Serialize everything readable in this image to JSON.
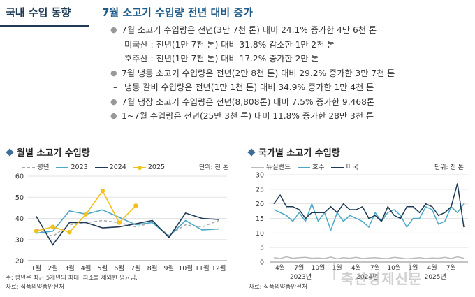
{
  "header": {
    "section": "국내 수입 동향",
    "title": "7월 소고기 수입량 전년 대비 증가"
  },
  "bullets": [
    {
      "level": 1,
      "text": "7월 소고기 수입량은 전년(3만 7천 톤) 대비 24.1% 증가한 4만 6천 톤"
    },
    {
      "level": 2,
      "text": "미국산 : 전년(1만 7천 톤) 대비 31.8% 감소한 1만 2천 톤"
    },
    {
      "level": 2,
      "text": "호주산 : 전년(1만 7천 톤) 대비 17.2% 증가한 2만 톤"
    },
    {
      "level": 1,
      "text": "7월 냉동 소고기 수입량은 전년(2만 8천 톤) 대비 29.2% 증가한 3만 7천 톤"
    },
    {
      "level": 2,
      "text": "냉동 갈비 수입량은 전년(1만 1천 톤) 대비 34.9% 증가한 1만 4천 톤"
    },
    {
      "level": 1,
      "text": "7월 냉장 소고기 수입량은 전년(8,808톤) 대비 7.5% 증가한 9,468톤"
    },
    {
      "level": 1,
      "text": "1~7월 수입량은 전년(25만 3천 톤) 대비 11.8% 증가한 28만 3천 톤"
    }
  ],
  "chart1": {
    "title": "월별 소고기 수입량",
    "unit": "단위: 천 톤",
    "note": "주: 평년은 최근 5개년의 최대, 최소를 제외한 평균임.",
    "source": "자료: 식품의약품안전처"
  },
  "chart2": {
    "title": "국가별 소고기 수입량",
    "unit": "단위: 천 톤",
    "source": "자료: 식품의약품안전처",
    "year_labels": [
      "2023년",
      "2024년",
      "2025년"
    ]
  },
  "watermark": "축산경제신문",
  "chart_data": [
    {
      "type": "line",
      "title": "월별 소고기 수입량",
      "categories": [
        "1월",
        "2월",
        "3월",
        "4월",
        "5월",
        "6월",
        "7월",
        "8월",
        "9월",
        "10월",
        "11월",
        "12월"
      ],
      "ylim": [
        20,
        60
      ],
      "yticks": [
        20,
        30,
        40,
        50,
        60
      ],
      "series": [
        {
          "name": "평년",
          "color": "#aaaaaa",
          "dashed": true,
          "values": [
            35,
            31.5,
            37,
            38,
            39,
            38,
            36,
            38,
            32,
            37,
            36,
            39
          ]
        },
        {
          "name": "2023",
          "color": "#4da8c7",
          "values": [
            33,
            34,
            43.5,
            42,
            44,
            40.5,
            37,
            38,
            31.5,
            39,
            34.5,
            35
          ]
        },
        {
          "name": "2024",
          "color": "#1f3a55",
          "values": [
            41,
            27.5,
            38,
            38,
            35.5,
            36,
            37.5,
            39,
            31,
            42.5,
            40,
            39.5
          ]
        },
        {
          "name": "2025",
          "color": "#f2c11c",
          "markers": true,
          "values": [
            34,
            36,
            33.5,
            42,
            53,
            38,
            46,
            null,
            null,
            null,
            null,
            null
          ]
        }
      ]
    },
    {
      "type": "line",
      "title": "국가별 소고기 수입량",
      "x_tick_labels": [
        "4월",
        "7월",
        "10월",
        "1월",
        "4월",
        "7월",
        "10월",
        "1월",
        "4월",
        "7월"
      ],
      "ylim": [
        0,
        30
      ],
      "yticks": [
        0,
        5,
        10,
        15,
        20,
        25,
        30
      ],
      "series": [
        {
          "name": "뉴질랜드",
          "color": "#bbbbbb",
          "values": [
            1.5,
            1.2,
            1.8,
            1.3,
            1.5,
            1.6,
            1.3,
            1.4,
            1.2,
            1.7,
            1.1,
            1.5,
            1.3,
            1.6,
            1.2,
            1.4,
            1.5,
            1.3,
            1.2,
            1.6,
            1.4,
            1.1,
            1.3,
            1.5,
            1.2,
            1.4,
            1.3,
            1.6,
            1.2,
            1.8,
            1.3
          ]
        },
        {
          "name": "호주",
          "color": "#4da8c7",
          "values": [
            18,
            17,
            16,
            14,
            17,
            14,
            20,
            14,
            17,
            11,
            17,
            14,
            16,
            15,
            14,
            12,
            17,
            14,
            17,
            18,
            16,
            12,
            15,
            15,
            19,
            18,
            13,
            14,
            19,
            17,
            20
          ]
        },
        {
          "name": "미국",
          "color": "#1f3a55",
          "values": [
            20,
            23,
            19,
            19,
            18,
            15,
            17,
            17,
            17,
            19,
            17,
            20,
            18,
            18,
            19,
            15,
            16,
            14,
            19,
            16,
            15,
            19,
            19,
            17,
            20,
            19,
            16,
            17,
            19,
            27,
            12
          ]
        }
      ]
    }
  ]
}
